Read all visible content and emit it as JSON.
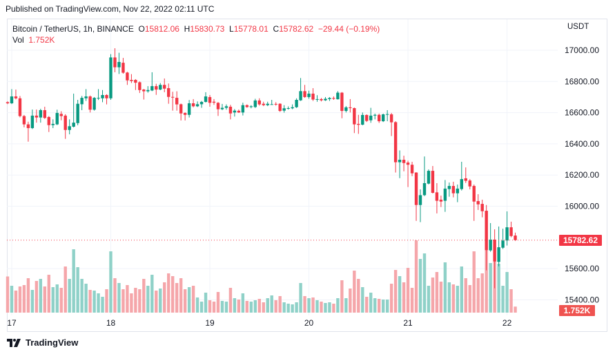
{
  "header": {
    "published": "Published on TradingView.com, Nov 22, 2022 02:11 UTC"
  },
  "legend": {
    "symbol": "Bitcoin / TetherUS, 1h, BINANCE",
    "o_label": "O",
    "o": "15812.06",
    "h_label": "H",
    "h": "15830.73",
    "l_label": "L",
    "l": "15778.01",
    "c_label": "C",
    "c": "15782.62",
    "change": "−29.44 (−0.19%)",
    "vol_label": "Vol",
    "vol": "1.752K"
  },
  "price_axis": {
    "currency": "USDT",
    "last_price_tag": "15782.62",
    "volume_tag": "1.752K"
  },
  "footer": {
    "brand": "TradingView"
  },
  "colors": {
    "up": "#089981",
    "down": "#f23645",
    "vol_up": "#8fd1c8",
    "vol_down": "#f5a6aa",
    "grid": "#f0f3fa"
  },
  "chart_data": {
    "type": "candlestick",
    "symbol": "BTCUSDT",
    "interval": "1h",
    "ylim": [
      15350,
      17050
    ],
    "y_ticks": [
      "17000.00",
      "16800.00",
      "16600.00",
      "16400.00",
      "16200.00",
      "16000.00",
      "15600.00",
      "15400.00"
    ],
    "x_ticks": [
      {
        "label": "17",
        "t": "2022-11-17T00:00"
      },
      {
        "label": "18",
        "t": "2022-11-18T00:00"
      },
      {
        "label": "19",
        "t": "2022-11-19T00:00"
      },
      {
        "label": "20",
        "t": "2022-11-20T00:00"
      },
      {
        "label": "21",
        "t": "2022-11-21T00:00"
      },
      {
        "label": "22",
        "t": "2022-11-22T00:00"
      }
    ],
    "grid": true,
    "columns": [
      "t",
      "open",
      "high",
      "low",
      "close",
      "volume"
    ],
    "candles": [
      [
        "2022-11-16T23:00",
        16667,
        16672,
        16655,
        16660,
        10500
      ],
      [
        "2022-11-17T00:00",
        16660,
        16751,
        16655,
        16704,
        7800
      ],
      [
        "2022-11-17T01:00",
        16704,
        16748,
        16685,
        16692,
        6400
      ],
      [
        "2022-11-17T02:00",
        16692,
        16707,
        16570,
        16578,
        7600
      ],
      [
        "2022-11-17T03:00",
        16578,
        16585,
        16506,
        16525,
        8000
      ],
      [
        "2022-11-17T04:00",
        16525,
        16542,
        16414,
        16501,
        10000
      ],
      [
        "2022-11-17T05:00",
        16501,
        16620,
        16495,
        16581,
        6600
      ],
      [
        "2022-11-17T06:00",
        16581,
        16620,
        16536,
        16569,
        9200
      ],
      [
        "2022-11-17T07:00",
        16569,
        16625,
        16536,
        16616,
        9800
      ],
      [
        "2022-11-17T08:00",
        16616,
        16638,
        16560,
        16566,
        7600
      ],
      [
        "2022-11-17T09:00",
        16572,
        16578,
        16476,
        16520,
        11000
      ],
      [
        "2022-11-17T10:00",
        16520,
        16557,
        16501,
        16528,
        7400
      ],
      [
        "2022-11-17T11:00",
        16525,
        16619,
        16520,
        16598,
        8200
      ],
      [
        "2022-11-17T12:00",
        16592,
        16609,
        16551,
        16578,
        7200
      ],
      [
        "2022-11-17T13:00",
        16581,
        16590,
        16432,
        16489,
        13400
      ],
      [
        "2022-11-17T14:00",
        16489,
        16557,
        16461,
        16513,
        9800
      ],
      [
        "2022-11-17T15:00",
        16510,
        16722,
        16505,
        16536,
        18400
      ],
      [
        "2022-11-17T16:00",
        16533,
        16682,
        16519,
        16657,
        13200
      ],
      [
        "2022-11-17T17:00",
        16654,
        16707,
        16616,
        16695,
        9800
      ],
      [
        "2022-11-17T18:00",
        16692,
        16751,
        16675,
        16704,
        8400
      ],
      [
        "2022-11-17T19:00",
        16704,
        16710,
        16601,
        16619,
        6600
      ],
      [
        "2022-11-17T20:00",
        16619,
        16700,
        16613,
        16695,
        6400
      ],
      [
        "2022-11-17T21:00",
        16692,
        16751,
        16681,
        16695,
        5600
      ],
      [
        "2022-11-17T22:00",
        16692,
        16745,
        16667,
        16713,
        4600
      ],
      [
        "2022-11-17T23:00",
        16713,
        16718,
        16653,
        16692,
        6800
      ],
      [
        "2022-11-18T00:00",
        16692,
        16975,
        16682,
        16954,
        17800
      ],
      [
        "2022-11-18T01:00",
        16954,
        17013,
        16859,
        16891,
        10000
      ],
      [
        "2022-11-18T02:00",
        16891,
        16984,
        16848,
        16925,
        8600
      ],
      [
        "2022-11-18T03:00",
        16920,
        16951,
        16850,
        16856,
        6800
      ],
      [
        "2022-11-18T04:00",
        16857,
        16862,
        16778,
        16807,
        8000
      ],
      [
        "2022-11-18T05:00",
        16810,
        16847,
        16790,
        16803,
        5600
      ],
      [
        "2022-11-18T06:00",
        16810,
        16815,
        16745,
        16792,
        7200
      ],
      [
        "2022-11-18T07:00",
        16795,
        16800,
        16726,
        16745,
        6800
      ],
      [
        "2022-11-18T08:00",
        16748,
        16752,
        16684,
        16737,
        9800
      ],
      [
        "2022-11-18T09:00",
        16737,
        16770,
        16728,
        16745,
        7800
      ],
      [
        "2022-11-18T10:00",
        16742,
        16859,
        16738,
        16770,
        11000
      ],
      [
        "2022-11-18T11:00",
        16770,
        16785,
        16714,
        16748,
        6400
      ],
      [
        "2022-11-18T12:00",
        16748,
        16790,
        16744,
        16778,
        7000
      ],
      [
        "2022-11-18T13:00",
        16778,
        16819,
        16731,
        16754,
        8800
      ],
      [
        "2022-11-18T14:00",
        16757,
        16787,
        16657,
        16701,
        11400
      ],
      [
        "2022-11-18T15:00",
        16701,
        16734,
        16613,
        16698,
        10600
      ],
      [
        "2022-11-18T16:00",
        16695,
        16737,
        16613,
        16653,
        8600
      ],
      [
        "2022-11-18T17:00",
        16654,
        16658,
        16550,
        16595,
        10000
      ],
      [
        "2022-11-18T18:00",
        16598,
        16602,
        16550,
        16586,
        6800
      ],
      [
        "2022-11-18T19:00",
        16586,
        16681,
        16569,
        16660,
        7400
      ],
      [
        "2022-11-18T20:00",
        16660,
        16687,
        16634,
        16641,
        7800
      ],
      [
        "2022-11-18T21:00",
        16641,
        16672,
        16636,
        16654,
        4400
      ],
      [
        "2022-11-18T22:00",
        16654,
        16675,
        16631,
        16669,
        3200
      ],
      [
        "2022-11-18T23:00",
        16669,
        16731,
        16665,
        16704,
        5800
      ],
      [
        "2022-11-19T00:00",
        16700,
        16713,
        16638,
        16663,
        3600
      ],
      [
        "2022-11-19T01:00",
        16670,
        16687,
        16650,
        16664,
        3200
      ],
      [
        "2022-11-19T02:00",
        16663,
        16668,
        16579,
        16622,
        6000
      ],
      [
        "2022-11-19T03:00",
        16622,
        16656,
        16616,
        16631,
        3400
      ],
      [
        "2022-11-19T04:00",
        16631,
        16653,
        16619,
        16641,
        3200
      ],
      [
        "2022-11-19T05:00",
        16638,
        16650,
        16557,
        16595,
        7200
      ],
      [
        "2022-11-19T06:00",
        16601,
        16623,
        16575,
        16613,
        4200
      ],
      [
        "2022-11-19T07:00",
        16612,
        16620,
        16598,
        16601,
        3800
      ],
      [
        "2022-11-19T08:00",
        16601,
        16664,
        16582,
        16648,
        5600
      ],
      [
        "2022-11-19T09:00",
        16648,
        16653,
        16631,
        16636,
        3400
      ],
      [
        "2022-11-19T10:00",
        16636,
        16648,
        16628,
        16641,
        3200
      ],
      [
        "2022-11-19T11:00",
        16636,
        16689,
        16630,
        16678,
        3600
      ],
      [
        "2022-11-19T12:00",
        16678,
        16692,
        16645,
        16653,
        4000
      ],
      [
        "2022-11-19T13:00",
        16657,
        16670,
        16642,
        16648,
        3000
      ],
      [
        "2022-11-19T14:00",
        16648,
        16670,
        16642,
        16657,
        4200
      ],
      [
        "2022-11-19T15:00",
        16653,
        16682,
        16650,
        16654,
        5000
      ],
      [
        "2022-11-19T16:00",
        16656,
        16667,
        16645,
        16652,
        3600
      ],
      [
        "2022-11-19T17:00",
        16657,
        16660,
        16605,
        16611,
        4800
      ],
      [
        "2022-11-19T18:00",
        16613,
        16648,
        16600,
        16628,
        3000
      ],
      [
        "2022-11-19T19:00",
        16626,
        16640,
        16620,
        16629,
        2600
      ],
      [
        "2022-11-19T20:00",
        16628,
        16653,
        16622,
        16635,
        2400
      ],
      [
        "2022-11-19T21:00",
        16635,
        16692,
        16630,
        16682,
        3000
      ],
      [
        "2022-11-19T22:00",
        16679,
        16822,
        16675,
        16738,
        8600
      ],
      [
        "2022-11-19T23:00",
        16738,
        16778,
        16695,
        16700,
        4800
      ],
      [
        "2022-11-20T00:00",
        16700,
        16741,
        16689,
        16722,
        4200
      ],
      [
        "2022-11-20T01:00",
        16722,
        16757,
        16675,
        16684,
        4400
      ],
      [
        "2022-11-20T02:00",
        16684,
        16712,
        16670,
        16687,
        3600
      ],
      [
        "2022-11-20T03:00",
        16687,
        16694,
        16672,
        16679,
        3200
      ],
      [
        "2022-11-20T04:00",
        16679,
        16700,
        16675,
        16689,
        2800
      ],
      [
        "2022-11-20T05:00",
        16687,
        16700,
        16675,
        16694,
        3000
      ],
      [
        "2022-11-20T06:00",
        16694,
        16704,
        16682,
        16689,
        2600
      ],
      [
        "2022-11-20T07:00",
        16686,
        16738,
        16684,
        16728,
        4200
      ],
      [
        "2022-11-20T08:00",
        16728,
        16732,
        16564,
        16611,
        9400
      ],
      [
        "2022-11-20T09:00",
        16611,
        16642,
        16601,
        16634,
        4200
      ],
      [
        "2022-11-20T10:00",
        16634,
        16687,
        16601,
        16629,
        7000
      ],
      [
        "2022-11-20T11:00",
        16629,
        16633,
        16469,
        16525,
        12200
      ],
      [
        "2022-11-20T12:00",
        16528,
        16586,
        16464,
        16522,
        9800
      ],
      [
        "2022-11-20T13:00",
        16523,
        16601,
        16519,
        16585,
        7400
      ],
      [
        "2022-11-20T14:00",
        16585,
        16589,
        16540,
        16547,
        4600
      ],
      [
        "2022-11-20T15:00",
        16551,
        16631,
        16535,
        16581,
        5800
      ],
      [
        "2022-11-20T16:00",
        16581,
        16594,
        16557,
        16586,
        4200
      ],
      [
        "2022-11-20T17:00",
        16586,
        16594,
        16534,
        16545,
        4000
      ],
      [
        "2022-11-20T18:00",
        16545,
        16594,
        16540,
        16589,
        3800
      ],
      [
        "2022-11-20T19:00",
        16588,
        16616,
        16545,
        16591,
        3800
      ],
      [
        "2022-11-20T20:00",
        16589,
        16598,
        16450,
        16538,
        8400
      ],
      [
        "2022-11-20T21:00",
        16539,
        16545,
        16216,
        16282,
        12400
      ],
      [
        "2022-11-20T22:00",
        16282,
        16358,
        16180,
        16298,
        10600
      ],
      [
        "2022-11-20T23:00",
        16298,
        16324,
        16224,
        16277,
        8800
      ],
      [
        "2022-11-21T00:00",
        16280,
        16292,
        16123,
        16266,
        13000
      ],
      [
        "2022-11-21T01:00",
        16266,
        16285,
        16193,
        16211,
        7200
      ],
      [
        "2022-11-21T02:00",
        16216,
        16218,
        15906,
        16008,
        21000
      ],
      [
        "2022-11-21T03:00",
        16008,
        16108,
        15898,
        16071,
        15600
      ],
      [
        "2022-11-21T04:00",
        16071,
        16319,
        16065,
        16148,
        17200
      ],
      [
        "2022-11-21T05:00",
        16145,
        16236,
        16140,
        16227,
        7800
      ],
      [
        "2022-11-21T06:00",
        16227,
        16258,
        16082,
        16086,
        10200
      ],
      [
        "2022-11-21T07:00",
        16089,
        16148,
        15954,
        16035,
        11800
      ],
      [
        "2022-11-21T08:00",
        16042,
        16068,
        15995,
        16030,
        9000
      ],
      [
        "2022-11-21T09:00",
        16035,
        16168,
        15964,
        16113,
        14600
      ],
      [
        "2022-11-21T10:00",
        16110,
        16152,
        16061,
        16130,
        8800
      ],
      [
        "2022-11-21T11:00",
        16130,
        16157,
        16057,
        16083,
        8200
      ],
      [
        "2022-11-21T12:00",
        16083,
        16139,
        16026,
        16113,
        7800
      ],
      [
        "2022-11-21T13:00",
        16110,
        16285,
        16101,
        16174,
        13400
      ],
      [
        "2022-11-21T14:00",
        16179,
        16249,
        16149,
        16163,
        10000
      ],
      [
        "2022-11-21T15:00",
        16165,
        16174,
        16108,
        16127,
        8000
      ],
      [
        "2022-11-21T16:00",
        16130,
        16139,
        15906,
        16030,
        17800
      ],
      [
        "2022-11-21T17:00",
        16033,
        16077,
        15976,
        16012,
        10000
      ],
      [
        "2022-11-21T18:00",
        16015,
        16042,
        15929,
        15968,
        11400
      ],
      [
        "2022-11-21T19:00",
        15971,
        16008,
        15589,
        15717,
        18000
      ],
      [
        "2022-11-21T20:00",
        15717,
        15892,
        15708,
        15786,
        14400
      ],
      [
        "2022-11-21T21:00",
        15786,
        15852,
        15474,
        15646,
        14900
      ],
      [
        "2022-11-21T22:00",
        15643,
        15870,
        15615,
        15737,
        14200
      ],
      [
        "2022-11-21T23:00",
        15734,
        15856,
        15726,
        15780,
        7800
      ],
      [
        "2022-11-22T00:00",
        15780,
        15967,
        15748,
        15865,
        11800
      ],
      [
        "2022-11-22T01:00",
        15865,
        15901,
        15801,
        15809,
        6800
      ],
      [
        "2022-11-22T02:00",
        15812.06,
        15830.73,
        15778.01,
        15782.62,
        1752
      ]
    ]
  }
}
